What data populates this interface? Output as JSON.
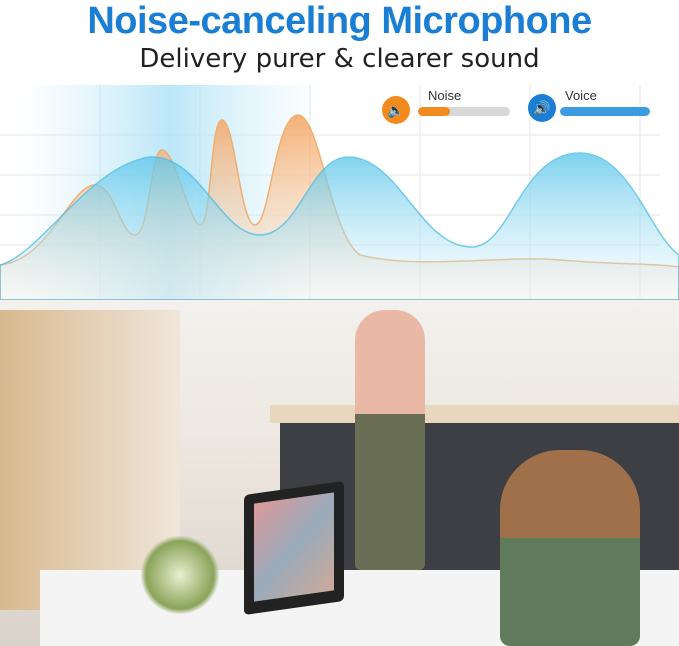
{
  "header": {
    "title": "Noise-canceling Microphone",
    "subtitle": "Delivery purer & clearer sound"
  },
  "legend": [
    {
      "label": "Noise",
      "icon": "speaker-muted-icon",
      "color": "#f28a1e",
      "level": 0.35
    },
    {
      "label": "Voice",
      "icon": "speaker-loud-icon",
      "color": "#3d9be0",
      "level": 1.0
    }
  ]
}
